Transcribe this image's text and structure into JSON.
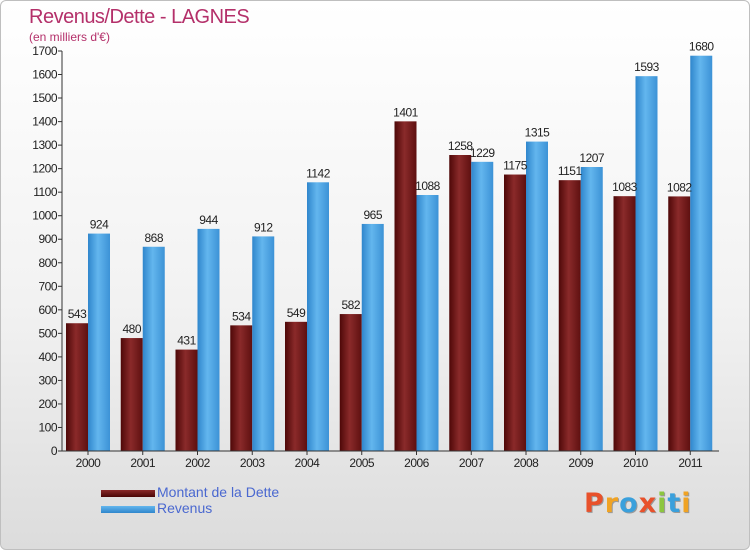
{
  "header": {
    "title": "Revenus/Dette - LAGNES",
    "subtitle": "(en milliers d'€)"
  },
  "legend": {
    "debt_label": "Montant de la Dette",
    "revenue_label": "Revenus"
  },
  "logo": {
    "text": "Proxiti",
    "colors": [
      "#e8512b",
      "#f0a324",
      "#3aa0dc",
      "#e8512b",
      "#8cc63f",
      "#3aa0dc",
      "#f0a324"
    ]
  },
  "colors": {
    "debt_top": "#8a2a2a",
    "debt_bottom": "#4a0606",
    "revenue_top": "#63b6ee",
    "revenue_bottom": "#2f86cc",
    "title": "#b4306a",
    "legend_text": "#4a68d0"
  },
  "chart_data": {
    "type": "bar",
    "title": "Revenus/Dette - LAGNES",
    "subtitle": "(en milliers d'€)",
    "categories": [
      "2000",
      "2001",
      "2002",
      "2003",
      "2004",
      "2005",
      "2006",
      "2007",
      "2008",
      "2009",
      "2010",
      "2011"
    ],
    "series": [
      {
        "name": "Montant de la Dette",
        "values": [
          543,
          480,
          431,
          534,
          549,
          582,
          1401,
          1258,
          1175,
          1151,
          1083,
          1082
        ]
      },
      {
        "name": "Revenus",
        "values": [
          924,
          868,
          944,
          912,
          1142,
          965,
          1088,
          1229,
          1315,
          1207,
          1593,
          1680
        ]
      }
    ],
    "ylim": [
      0,
      1700
    ],
    "yticks": [
      0,
      100,
      200,
      300,
      400,
      500,
      600,
      700,
      800,
      900,
      1000,
      1100,
      1200,
      1300,
      1400,
      1500,
      1600,
      1700
    ],
    "grid": false,
    "legend_position": "bottom-left"
  }
}
